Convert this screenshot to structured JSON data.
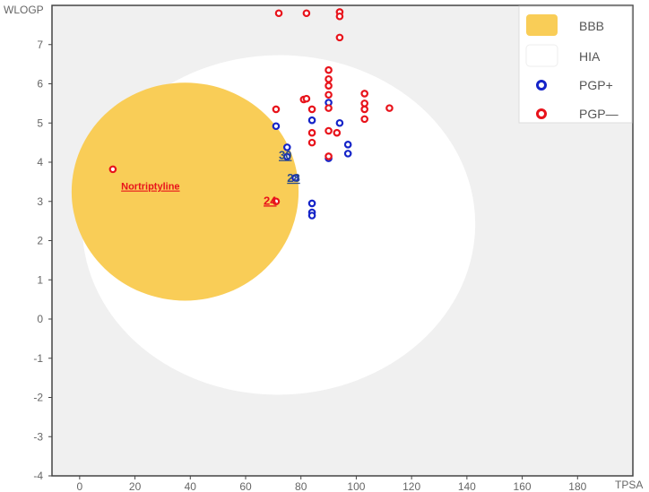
{
  "chart_data": {
    "type": "scatter",
    "title": "",
    "xlabel": "TPSA",
    "ylabel": "WLOGP",
    "xlim": [
      -10,
      200
    ],
    "ylim": [
      -4,
      8
    ],
    "xticks": [
      0,
      20,
      40,
      60,
      80,
      100,
      120,
      140,
      160,
      180
    ],
    "yticks": [
      -4,
      -3,
      -2,
      -1,
      0,
      1,
      2,
      3,
      4,
      5,
      6,
      7
    ],
    "regions": {
      "hia": {
        "name": "HIA",
        "color": "#ffffff",
        "cx": 71.97,
        "cy": 2.4,
        "rx": 142.08,
        "ry": 8.66,
        "angle_deg": -1.03
      },
      "bbb": {
        "name": "BBB",
        "color": "#f9cd57",
        "cx": 38.12,
        "cy": 3.25,
        "rx": 82.06,
        "ry": 5.56,
        "angle_deg": 0
      }
    },
    "series": [
      {
        "name": "PGP+",
        "color": "#1524c8",
        "points": [
          {
            "x": 71,
            "y": 4.92
          },
          {
            "x": 75,
            "y": 4.38
          },
          {
            "x": 75,
            "y": 4.14
          },
          {
            "x": 78,
            "y": 3.6
          },
          {
            "x": 84,
            "y": 5.07
          },
          {
            "x": 84,
            "y": 2.95
          },
          {
            "x": 84,
            "y": 2.72
          },
          {
            "x": 84,
            "y": 2.64
          },
          {
            "x": 90,
            "y": 5.52
          },
          {
            "x": 90,
            "y": 4.1
          },
          {
            "x": 94,
            "y": 5.0
          },
          {
            "x": 97,
            "y": 4.45
          },
          {
            "x": 97,
            "y": 4.22
          }
        ]
      },
      {
        "name": "PGP—",
        "color": "#e8131b",
        "points": [
          {
            "x": 12,
            "y": 3.82
          },
          {
            "x": 71,
            "y": 3.0
          },
          {
            "x": 71,
            "y": 5.35
          },
          {
            "x": 72,
            "y": 7.8
          },
          {
            "x": 81,
            "y": 5.6
          },
          {
            "x": 82,
            "y": 7.8
          },
          {
            "x": 82,
            "y": 5.62
          },
          {
            "x": 84,
            "y": 5.35
          },
          {
            "x": 84,
            "y": 4.75
          },
          {
            "x": 84,
            "y": 4.5
          },
          {
            "x": 90,
            "y": 6.35
          },
          {
            "x": 90,
            "y": 6.12
          },
          {
            "x": 90,
            "y": 5.95
          },
          {
            "x": 90,
            "y": 5.72
          },
          {
            "x": 90,
            "y": 5.38
          },
          {
            "x": 90,
            "y": 4.8
          },
          {
            "x": 90,
            "y": 4.15
          },
          {
            "x": 93,
            "y": 4.75
          },
          {
            "x": 94,
            "y": 7.83
          },
          {
            "x": 94,
            "y": 7.72
          },
          {
            "x": 94,
            "y": 7.18
          },
          {
            "x": 103,
            "y": 5.75
          },
          {
            "x": 103,
            "y": 5.5
          },
          {
            "x": 103,
            "y": 5.35
          },
          {
            "x": 103,
            "y": 5.1
          },
          {
            "x": 112,
            "y": 5.38
          }
        ]
      }
    ],
    "annotations": [
      {
        "text": "Nortriptyline",
        "x": 15,
        "y": 3.3,
        "color": "#e8131b",
        "size": "small"
      },
      {
        "text": "30",
        "x": 72,
        "y": 4.08,
        "color": "#2a4b8c",
        "size": "large"
      },
      {
        "text": "28",
        "x": 75,
        "y": 3.5,
        "color": "#2a4b8c",
        "size": "large"
      },
      {
        "text": "24",
        "x": 66.5,
        "y": 2.92,
        "color": "#e8131b",
        "size": "large"
      }
    ],
    "legend": {
      "position": "top-right",
      "items": [
        {
          "label": "BBB",
          "kind": "swatch",
          "color": "#f9cd57"
        },
        {
          "label": "HIA",
          "kind": "swatch",
          "color": "#ffffff"
        },
        {
          "label": "PGP+",
          "kind": "marker",
          "color": "#1524c8"
        },
        {
          "label": "PGP—",
          "kind": "marker",
          "color": "#e8131b"
        }
      ]
    },
    "grid": false,
    "background": "#f0f0f0"
  }
}
